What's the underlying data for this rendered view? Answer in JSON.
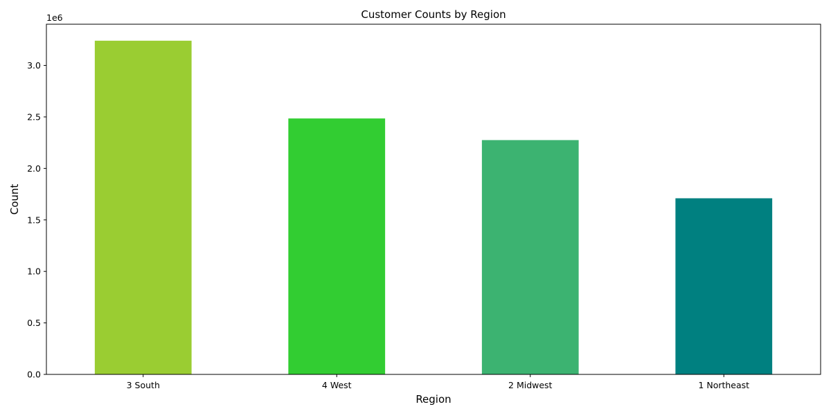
{
  "chart_data": {
    "type": "bar",
    "title": "Customer Counts by Region",
    "xlabel": "Region",
    "ylabel": "Count",
    "y_offset_text": "1e6",
    "categories": [
      "3 South",
      "4 West",
      "2 Midwest",
      "1 Northeast"
    ],
    "values": [
      3240000,
      2485000,
      2275000,
      1710000
    ],
    "colors": [
      "#9acd32",
      "#32cd32",
      "#3cb371",
      "#008080"
    ],
    "ylim": [
      0,
      3400000
    ],
    "yticks": [
      0,
      500000,
      1000000,
      1500000,
      2000000,
      2500000,
      3000000
    ],
    "ytick_labels": [
      "0.0",
      "0.5",
      "1.0",
      "1.5",
      "2.0",
      "2.5",
      "3.0"
    ],
    "grid": false,
    "legend": "none"
  }
}
